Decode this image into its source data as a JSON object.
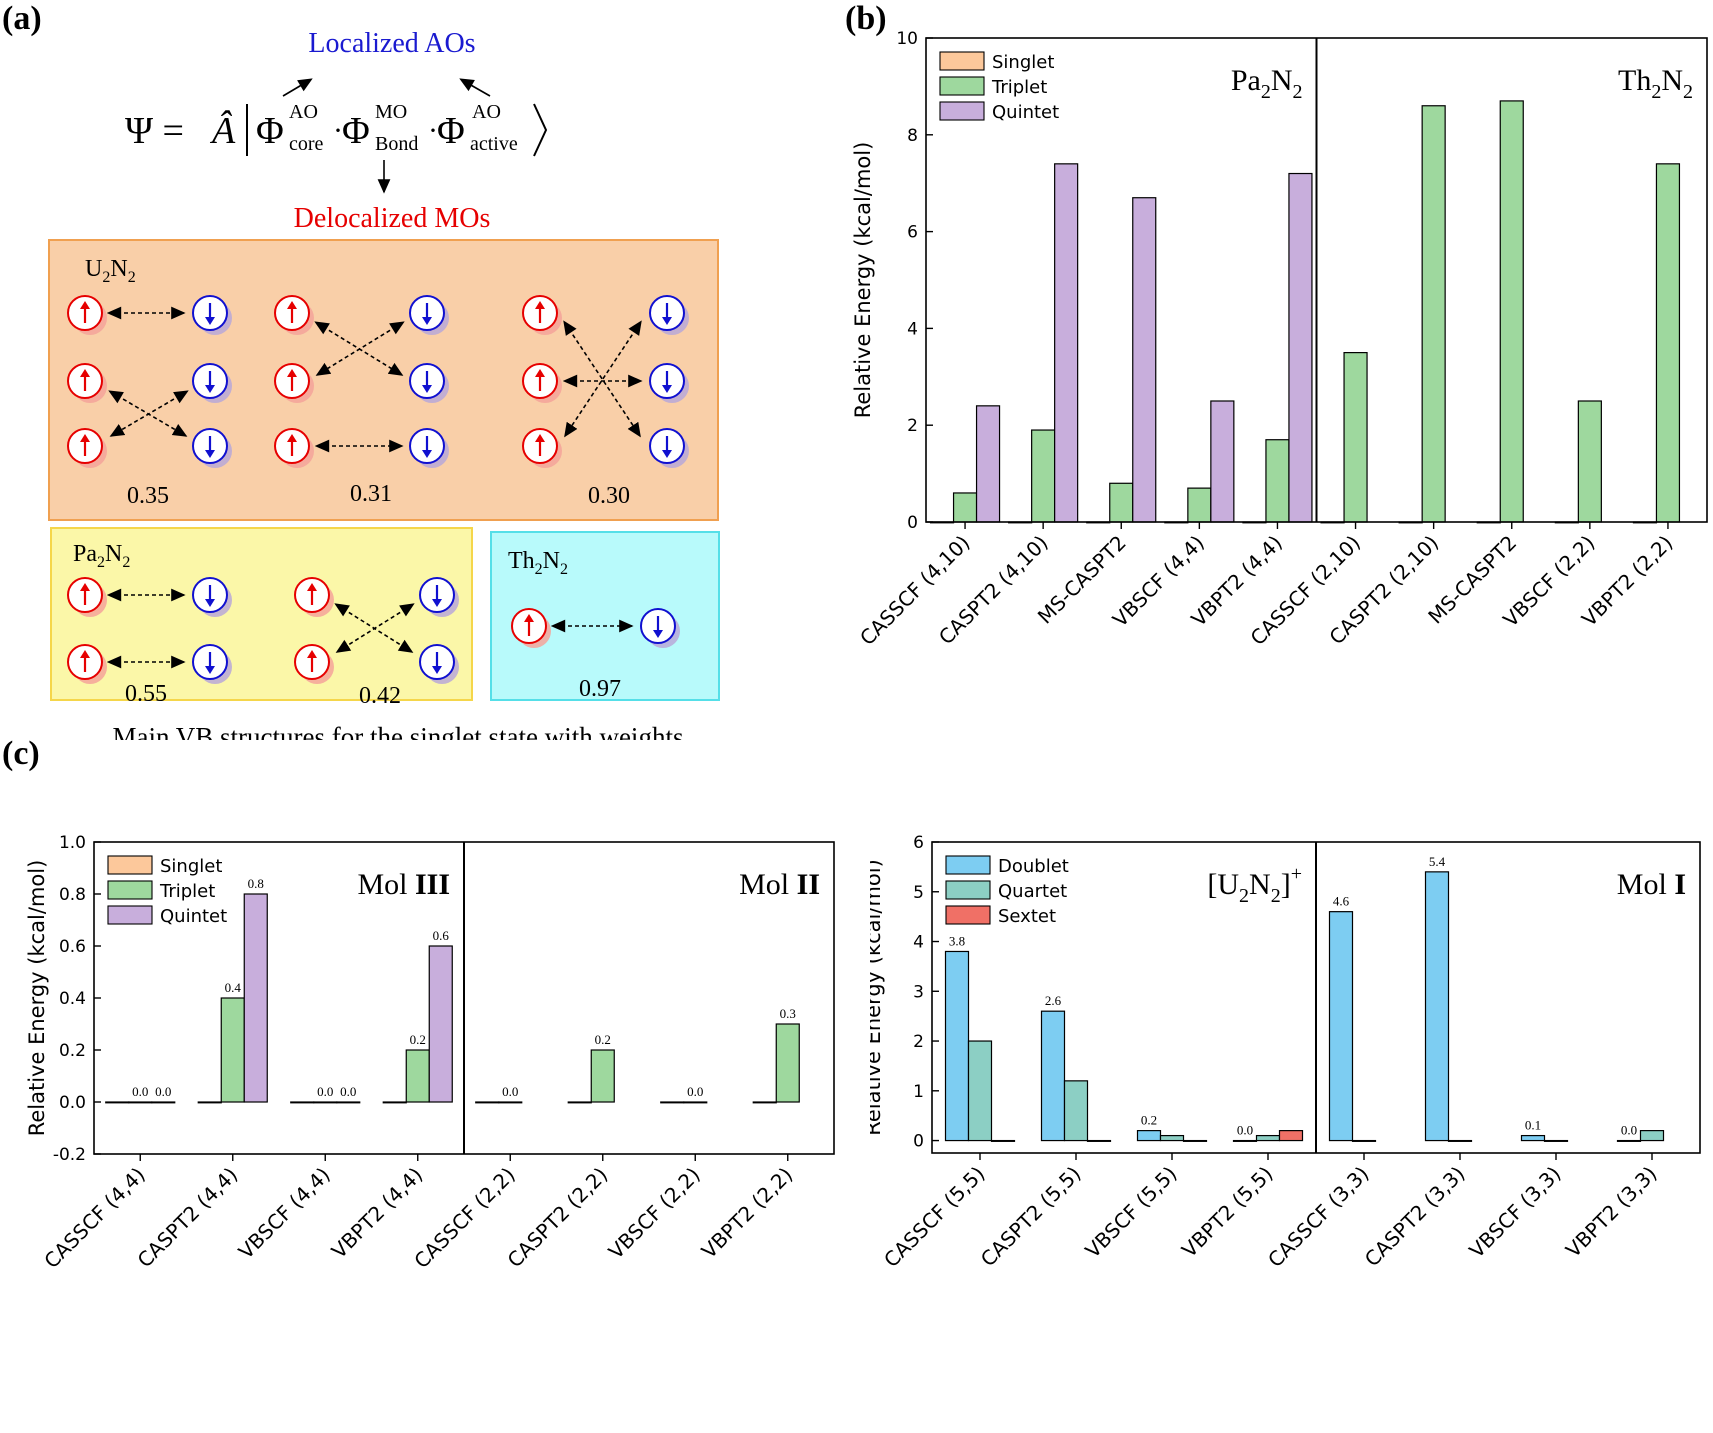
{
  "panel_labels": {
    "a": "(a)",
    "b": "(b)",
    "c": "(c)"
  },
  "panel_a": {
    "localized_label": "Localized AOs",
    "delocalized_label": "Delocalized MOs",
    "equation": {
      "lhs": "Ψ = ",
      "operator": "Â",
      "term1": "Φ",
      "term1_sup": "AO",
      "term1_sub": "core",
      "term2": "Φ",
      "term2_sup": "MO",
      "term2_sub": "Bond",
      "term3": "Φ",
      "term3_sup": "AO",
      "term3_sub": "active",
      "dot": "·"
    },
    "boxes": {
      "u2n2": {
        "name_base": "U",
        "name_sub1": "2",
        "name_mid": "N",
        "name_sub2": "2",
        "weights": [
          "0.35",
          "0.31",
          "0.30"
        ],
        "color": "#f9cfa8",
        "border": "#f0a050"
      },
      "pa2n2": {
        "name_base": "Pa",
        "name_sub1": "2",
        "name_mid": "N",
        "name_sub2": "2",
        "weights": [
          "0.55",
          "0.42"
        ],
        "color": "#fbf7a8",
        "border": "#f5d64a"
      },
      "th2n2": {
        "name_base": "Th",
        "name_sub1": "2",
        "name_mid": "N",
        "name_sub2": "2",
        "weights": [
          "0.97"
        ],
        "color": "#b8fafb",
        "border": "#55dfe8"
      }
    },
    "caption": "Main VB structures for the singlet state with weights",
    "colors": {
      "up": "#e60000",
      "down": "#1010d0",
      "localized": "#1a1ad0",
      "delocalized": "#e60000"
    }
  },
  "chart_data": [
    {
      "id": "b",
      "type": "bar",
      "ylabel": "Relative Energy (kcal/mol)",
      "ylim": [
        0,
        10
      ],
      "yticks": [
        "0",
        "2",
        "4",
        "6",
        "8",
        "10"
      ],
      "categories": [
        "CASSCF (4,10)",
        "CASPT2 (4,10)",
        "MS-CASPT2",
        "VBSCF (4,4)",
        "VBPT2 (4,4)",
        "CASSCF (2,10)",
        "CASPT2 (2,10)",
        "MS-CASPT2",
        "VBSCF (2,2)",
        "VBPT2 (2,2)"
      ],
      "divider_after": 5,
      "section_titles": [
        {
          "base": "Pa",
          "sub1": "2",
          "mid": "N",
          "sub2": "2",
          "bold": "",
          "sup": ""
        },
        {
          "base": "Th",
          "sub1": "2",
          "mid": "N",
          "sub2": "2",
          "bold": "",
          "sup": ""
        }
      ],
      "legend": [
        "Singlet",
        "Triplet",
        "Quintet"
      ],
      "colors": [
        "#fcc89b",
        "#9ed89e",
        "#c8aedc"
      ],
      "series": [
        {
          "name": "Singlet",
          "values": [
            0,
            0,
            0,
            0,
            0,
            0,
            0,
            0,
            0,
            0
          ]
        },
        {
          "name": "Triplet",
          "values": [
            0.6,
            1.9,
            0.8,
            0.7,
            1.7,
            3.5,
            8.6,
            8.7,
            2.5,
            7.4
          ]
        },
        {
          "name": "Quintet",
          "values": [
            2.4,
            7.4,
            6.7,
            2.5,
            7.2,
            null,
            null,
            null,
            null,
            null
          ]
        }
      ],
      "data_labels": false
    },
    {
      "id": "c1",
      "type": "bar",
      "ylabel": "Relative Energy (kcal/mol)",
      "ylim": [
        -0.2,
        1.0
      ],
      "yticks": [
        "-0.2",
        "0.0",
        "0.2",
        "0.4",
        "0.6",
        "0.8",
        "1.0"
      ],
      "categories": [
        "CASSCF (4,4)",
        "CASPT2 (4,4)",
        "VBSCF (4,4)",
        "VBPT2 (4,4)",
        "CASSCF (2,2)",
        "CASPT2 (2,2)",
        "VBSCF (2,2)",
        "VBPT2 (2,2)"
      ],
      "divider_after": 4,
      "section_titles": [
        {
          "base": "Mol ",
          "sub1": "",
          "mid": "",
          "sub2": "",
          "bold": "III",
          "sup": ""
        },
        {
          "base": "Mol ",
          "sub1": "",
          "mid": "",
          "sub2": "",
          "bold": "II",
          "sup": ""
        }
      ],
      "legend": [
        "Singlet",
        "Triplet",
        "Quintet"
      ],
      "colors": [
        "#fcc89b",
        "#9ed89e",
        "#c8aedc"
      ],
      "series": [
        {
          "name": "Singlet",
          "values": [
            0,
            0,
            0,
            0,
            0,
            0,
            0,
            0
          ]
        },
        {
          "name": "Triplet",
          "values": [
            0,
            0.4,
            0,
            0.2,
            0,
            0.2,
            0,
            0.3
          ]
        },
        {
          "name": "Quintet",
          "values": [
            0,
            0.8,
            0,
            0.6,
            null,
            null,
            null,
            null
          ]
        }
      ],
      "labels": [
        {
          "cat": 0,
          "ser": 1,
          "text": "0.0"
        },
        {
          "cat": 0,
          "ser": 2,
          "text": "0.0"
        },
        {
          "cat": 1,
          "ser": 1,
          "text": "0.4"
        },
        {
          "cat": 1,
          "ser": 2,
          "text": "0.8"
        },
        {
          "cat": 2,
          "ser": 1,
          "text": "0.0"
        },
        {
          "cat": 2,
          "ser": 2,
          "text": "0.0"
        },
        {
          "cat": 3,
          "ser": 1,
          "text": "0.2"
        },
        {
          "cat": 3,
          "ser": 2,
          "text": "0.6"
        },
        {
          "cat": 4,
          "ser": 1,
          "text": "0.0"
        },
        {
          "cat": 5,
          "ser": 1,
          "text": "0.2"
        },
        {
          "cat": 6,
          "ser": 1,
          "text": "0.0"
        },
        {
          "cat": 7,
          "ser": 1,
          "text": "0.3"
        }
      ]
    },
    {
      "id": "c2",
      "type": "bar",
      "ylabel": "Relative Energy (kcal/mol)",
      "ylim": [
        -0.25,
        6
      ],
      "yticks": [
        "0",
        "1",
        "2",
        "3",
        "4",
        "5",
        "6"
      ],
      "ytick_values": [
        0,
        1,
        2,
        3,
        4,
        5,
        6
      ],
      "categories": [
        "CASSCF (5,5)",
        "CASPT2 (5,5)",
        "VBSCF (5,5)",
        "VBPT2 (5,5)",
        "CASSCF (3,3)",
        "CASPT2 (3,3)",
        "VBSCF (3,3)",
        "VBPT2 (3,3)"
      ],
      "divider_after": 4,
      "section_titles": [
        {
          "base": "[U",
          "sub1": "2",
          "mid": "N",
          "sub2": "2",
          "bold": "",
          "sup": "+",
          "close": "]"
        },
        {
          "base": "Mol ",
          "sub1": "",
          "mid": "",
          "sub2": "",
          "bold": "I",
          "sup": ""
        }
      ],
      "legend": [
        "Doublet",
        "Quartet",
        "Sextet"
      ],
      "colors": [
        "#7dcdf2",
        "#8ccfc4",
        "#f07066"
      ],
      "series": [
        {
          "name": "Doublet",
          "values": [
            3.8,
            2.6,
            0.2,
            0.0,
            4.6,
            5.4,
            0.1,
            0.0
          ]
        },
        {
          "name": "Quartet",
          "values": [
            2.0,
            1.2,
            0.1,
            0.1,
            0,
            0,
            0,
            0.2
          ]
        },
        {
          "name": "Sextet",
          "values": [
            0,
            0,
            0,
            0.2,
            null,
            null,
            null,
            null
          ]
        }
      ],
      "labels": [
        {
          "cat": 0,
          "ser": 0,
          "text": "3.8"
        },
        {
          "cat": 1,
          "ser": 0,
          "text": "2.6"
        },
        {
          "cat": 2,
          "ser": 0,
          "text": "0.2"
        },
        {
          "cat": 3,
          "ser": 0,
          "text": "0.0"
        },
        {
          "cat": 4,
          "ser": 0,
          "text": "4.6"
        },
        {
          "cat": 5,
          "ser": 0,
          "text": "5.4"
        },
        {
          "cat": 6,
          "ser": 0,
          "text": "0.1"
        },
        {
          "cat": 7,
          "ser": 0,
          "text": "0.0"
        }
      ]
    }
  ]
}
